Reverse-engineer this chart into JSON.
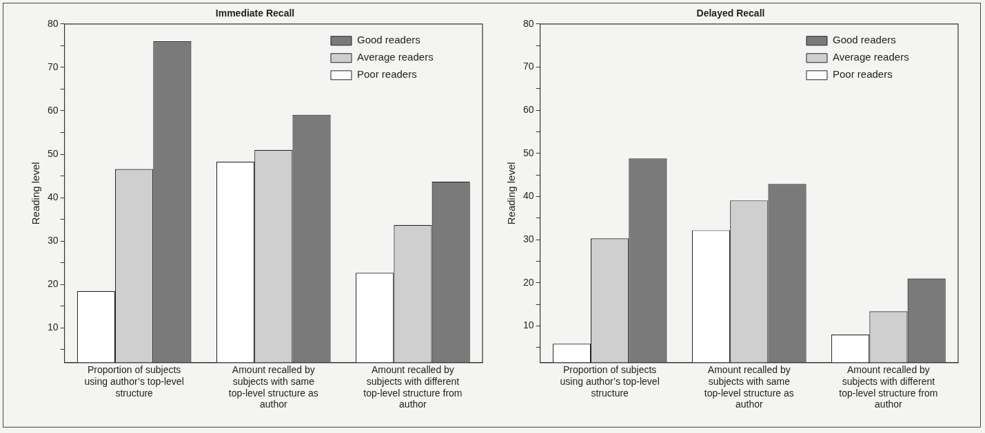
{
  "chart_data": [
    {
      "type": "bar",
      "title": "Immediate Recall",
      "ylabel": "Reading level",
      "categories": [
        "Proportion of subjects using author’s top-level structure",
        "Amount recalled by subjects with same top-level structure as author",
        "Amount recalled by subjects with different top-level structure from author"
      ],
      "series": [
        {
          "name": "Poor readers",
          "color": "#ffffff",
          "values": [
            18.5,
            48.3,
            22.7
          ]
        },
        {
          "name": "Average readers",
          "color": "#cfcfcf",
          "values": [
            46.6,
            51,
            33.7
          ]
        },
        {
          "name": "Good readers",
          "color": "#7a7a7a",
          "values": [
            76,
            59.1,
            43.7
          ]
        }
      ],
      "ylim": [
        2,
        80
      ],
      "yticks": [
        {
          "value": 5,
          "label": null
        },
        10,
        {
          "value": 15,
          "label": null
        },
        20,
        {
          "value": 25,
          "label": null
        },
        30,
        {
          "value": 35,
          "label": null
        },
        40,
        {
          "value": 45,
          "label": null
        },
        50,
        {
          "value": 55,
          "label": null
        },
        60,
        {
          "value": 65,
          "label": null
        },
        70,
        {
          "value": 75,
          "label": null
        },
        80
      ],
      "grid": false,
      "legend": "top right"
    },
    {
      "type": "bar",
      "title": "Delayed Recall",
      "ylabel": "Reading level",
      "categories": [
        "Proportion of subjects using author’s top-level structure",
        "Amount recalled by subjects with same top-level structure as author",
        "Amount recalled by subjects with different top-level structure from author"
      ],
      "series": [
        {
          "name": "Poor readers",
          "color": "#ffffff",
          "values": [
            5.9,
            32.2,
            8
          ]
        },
        {
          "name": "Average readers",
          "color": "#cfcfcf",
          "values": [
            30.3,
            39.1,
            13.4
          ]
        },
        {
          "name": "Good readers",
          "color": "#7a7a7a",
          "values": [
            48.8,
            42.9,
            21
          ]
        }
      ],
      "ylim": [
        1.5,
        80
      ],
      "yticks": [
        {
          "value": 5,
          "label": null
        },
        10,
        {
          "value": 15,
          "label": null
        },
        20,
        {
          "value": 25,
          "label": null
        },
        30,
        {
          "value": 35,
          "label": null
        },
        40,
        {
          "value": 45,
          "label": null
        },
        50,
        {
          "value": 55,
          "label": null
        },
        60,
        {
          "value": 65,
          "label": null
        },
        70,
        {
          "value": 75,
          "label": null
        },
        80
      ],
      "grid": false,
      "legend": "top right"
    }
  ]
}
